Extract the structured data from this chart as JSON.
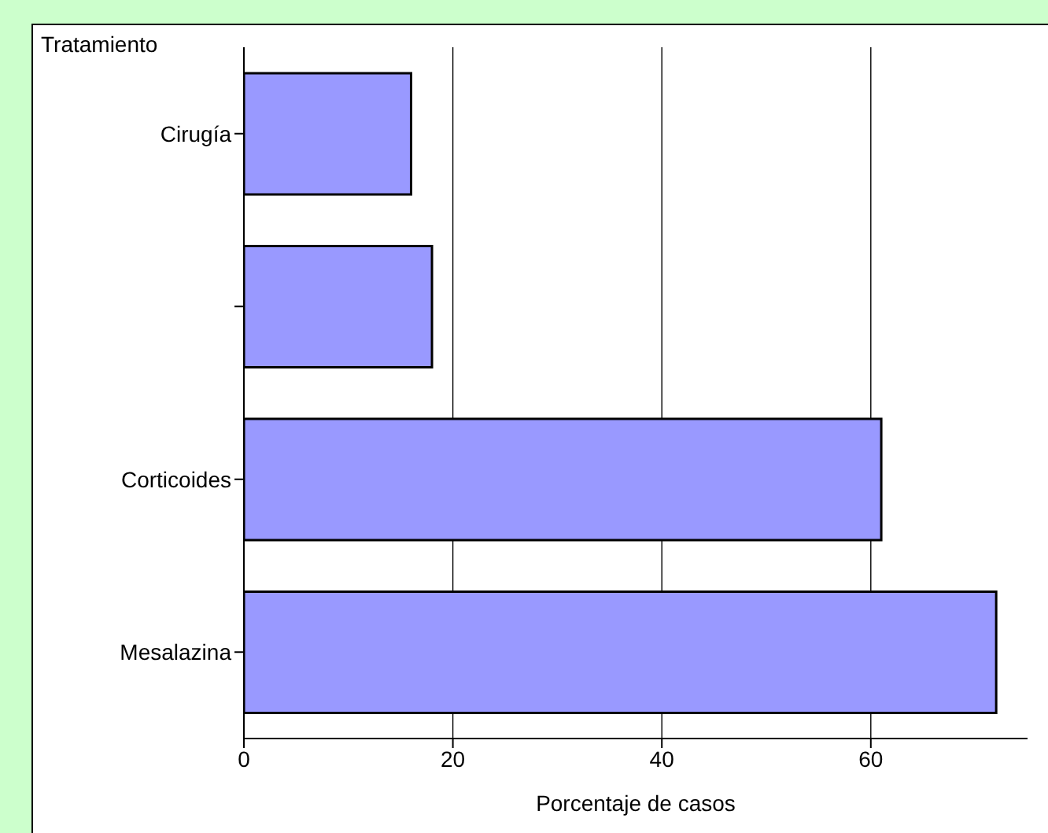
{
  "chart_data": {
    "type": "bar",
    "orientation": "horizontal",
    "ylabel": "Tratamiento",
    "xlabel": "Porcentaje de casos",
    "categories": [
      "Cirugía",
      null,
      "Corticoides",
      "Mesalazina"
    ],
    "values": [
      16,
      18,
      61,
      72
    ],
    "color": "#9999ff",
    "xlim": [
      0,
      75
    ],
    "xticks": [
      0,
      20,
      40,
      60
    ],
    "grid": "x"
  }
}
